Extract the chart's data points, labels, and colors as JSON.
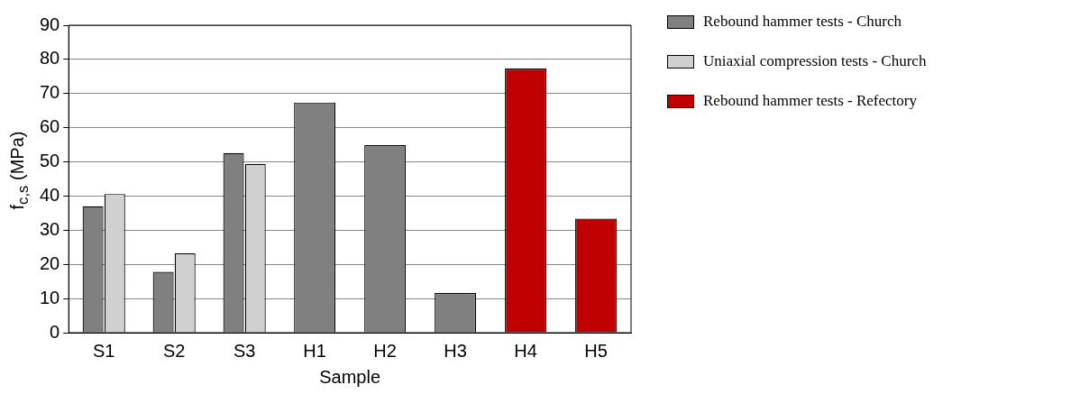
{
  "chart_data": {
    "type": "bar",
    "xlabel": "Sample",
    "ylabel": "f$_{c,s}$ (MPa)",
    "categories": [
      "S1",
      "S2",
      "S3",
      "H1",
      "H2",
      "H3",
      "H4",
      "H5"
    ],
    "series": [
      {
        "name": "Rebound hammer tests - Church",
        "color": "#808080",
        "values": [
          37,
          17.8,
          52.6,
          67.4,
          54.9,
          11.6,
          null,
          null
        ]
      },
      {
        "name": "Uniaxial compression tests - Church",
        "color": "#d0d0d0",
        "values": [
          40.6,
          23.2,
          49.4,
          null,
          null,
          null,
          null,
          null
        ]
      },
      {
        "name": "Rebound hammer tests - Refectory",
        "color": "#c00000",
        "values": [
          null,
          null,
          null,
          null,
          null,
          null,
          77.3,
          33.4
        ]
      }
    ],
    "ylim": [
      0,
      90
    ],
    "yticks": [
      0,
      10,
      20,
      30,
      40,
      50,
      60,
      70,
      80,
      90
    ],
    "grid": "y",
    "legend": "right"
  }
}
